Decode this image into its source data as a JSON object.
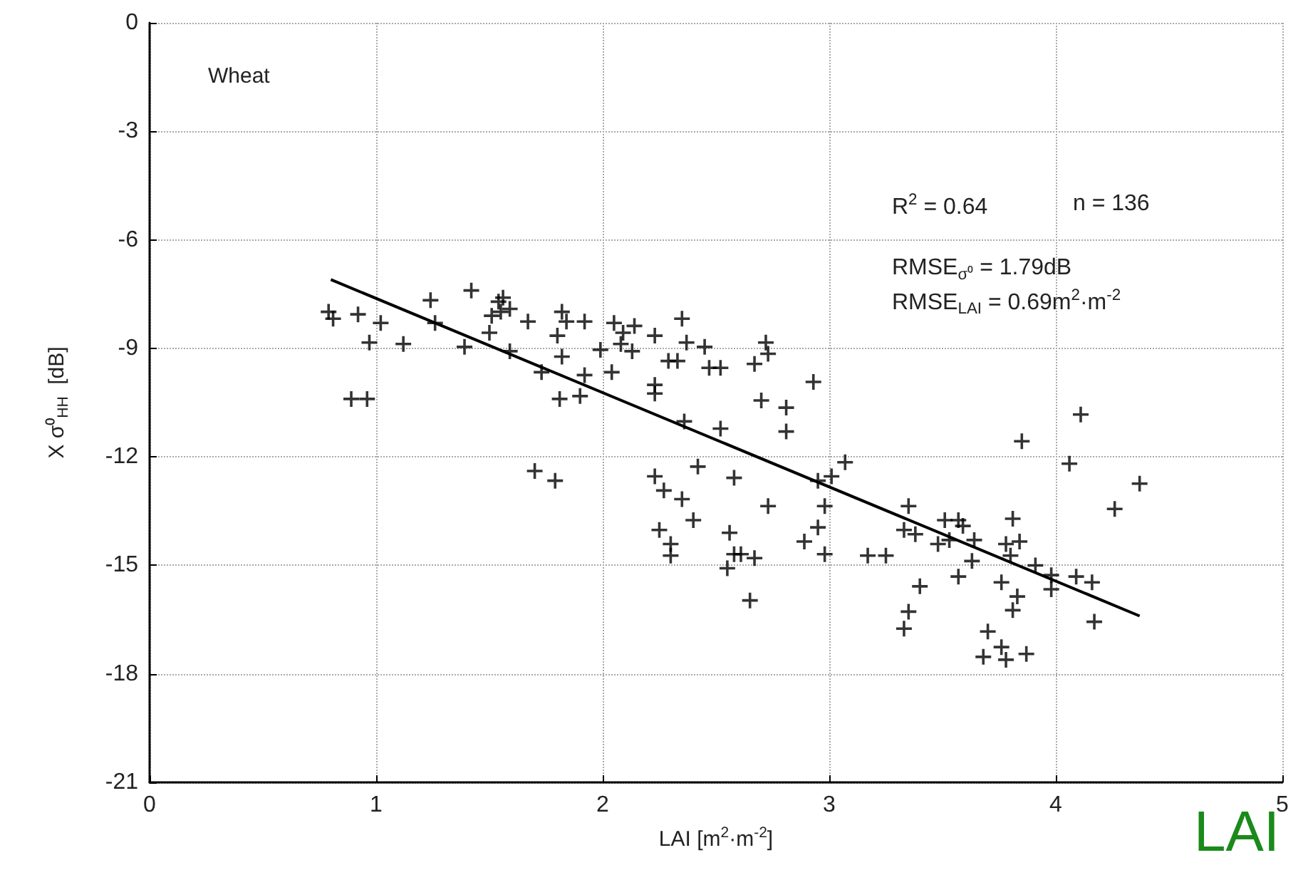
{
  "chart_data": {
    "type": "scatter",
    "xlabel": "LAI [m$^{2}$·m$^{-2}$]",
    "ylabel": "X σ⁰$_{HH}$  [dB]",
    "annotations": [
      "Wheat",
      "R$^{2}$ = 0.64",
      "n = 136",
      "RMSE$_{σ⁰}$ = 1.79dB",
      "RMSE$_{LAI}$ = 0.69m$^{2}$·m$^{-2}$",
      "LAI"
    ],
    "xlim": [
      0,
      5
    ],
    "xticks": [
      0,
      1,
      2,
      3,
      4,
      5
    ],
    "ylim": [
      -21,
      0
    ],
    "yticks": [
      -21,
      -18,
      -15,
      -12,
      -9,
      -6,
      -3,
      0
    ],
    "grid": true,
    "marker": "cross",
    "series": [
      {
        "color": "#000000",
        "x": [
          0.79,
          0.81,
          0.92,
          1.02,
          0.97,
          1.12,
          0.89,
          0.96,
          1.24,
          1.26,
          1.42,
          1.39,
          1.54,
          1.55,
          1.59,
          1.51,
          1.67,
          1.5,
          1.59,
          1.73,
          1.82,
          1.84,
          1.92,
          1.8,
          1.82,
          1.81,
          1.9,
          1.92,
          2.05,
          2.14,
          1.99,
          2.08,
          2.13,
          2.04,
          1.7,
          1.79,
          2.23,
          2.35,
          2.37,
          2.29,
          2.33,
          2.45,
          2.47,
          2.52,
          2.67,
          2.72,
          2.73,
          2.93,
          2.7,
          2.81,
          2.81,
          2.36,
          2.52,
          2.23,
          2.23,
          2.42,
          2.23,
          2.27,
          2.35,
          2.4,
          2.58,
          2.73,
          2.25,
          2.3,
          2.3,
          2.56,
          2.58,
          2.61,
          2.67,
          2.55,
          2.65,
          2.95,
          3.01,
          3.07,
          2.98,
          2.95,
          2.89,
          2.98,
          3.17,
          3.25,
          4.11,
          3.85,
          4.06,
          4.37,
          4.26,
          3.35,
          3.33,
          3.38,
          3.51,
          3.57,
          3.59,
          3.48,
          3.53,
          3.64,
          3.63,
          3.57,
          3.4,
          3.81,
          3.78,
          3.84,
          3.8,
          3.91,
          3.98,
          3.98,
          4.09,
          4.16,
          3.76,
          3.83,
          3.81,
          3.35,
          3.33,
          4.17,
          3.7,
          3.68,
          3.76,
          3.78,
          3.87,
          1.56,
          2.09
        ],
        "values": [
          -7.99,
          -8.18,
          -8.06,
          -8.3,
          -8.84,
          -8.88,
          -10.4,
          -10.4,
          -7.67,
          -8.3,
          -7.4,
          -8.96,
          -7.71,
          -7.99,
          -7.91,
          -8.1,
          -8.26,
          -8.57,
          -9.08,
          -9.66,
          -7.99,
          -8.26,
          -8.26,
          -8.65,
          -9.23,
          -10.4,
          -10.32,
          -9.74,
          -8.3,
          -8.38,
          -9.04,
          -8.88,
          -9.08,
          -9.66,
          -12.39,
          -12.66,
          -8.65,
          -8.18,
          -8.84,
          -9.35,
          -9.35,
          -8.96,
          -9.54,
          -9.54,
          -9.43,
          -8.84,
          -9.15,
          -9.93,
          -10.44,
          -10.64,
          -11.3,
          -11.02,
          -11.22,
          -10.01,
          -10.25,
          -12.27,
          -12.54,
          -12.93,
          -13.17,
          -13.75,
          -12.58,
          -13.36,
          -14.02,
          -14.41,
          -14.73,
          -14.1,
          -14.69,
          -14.69,
          -14.8,
          -15.08,
          -15.97,
          -12.66,
          -12.54,
          -12.15,
          -13.36,
          -13.95,
          -14.34,
          -14.69,
          -14.73,
          -14.73,
          -10.83,
          -11.57,
          -12.19,
          -12.74,
          -13.44,
          -13.36,
          -14.02,
          -14.14,
          -13.75,
          -13.75,
          -13.91,
          -14.41,
          -14.3,
          -14.3,
          -14.88,
          -15.31,
          -15.58,
          -13.71,
          -14.41,
          -14.34,
          -14.73,
          -15.0,
          -15.27,
          -15.66,
          -15.31,
          -15.47,
          -15.47,
          -15.86,
          -16.24,
          -16.28,
          -16.75,
          -16.56,
          -16.83,
          -17.53,
          -17.26,
          -17.61,
          -17.45,
          -7.6,
          -8.57
        ]
      },
      {
        "type": "line",
        "marker": "none",
        "color": "#000000",
        "x": [
          0.8,
          4.37
        ],
        "values": [
          -7.1,
          -16.4
        ]
      }
    ]
  }
}
